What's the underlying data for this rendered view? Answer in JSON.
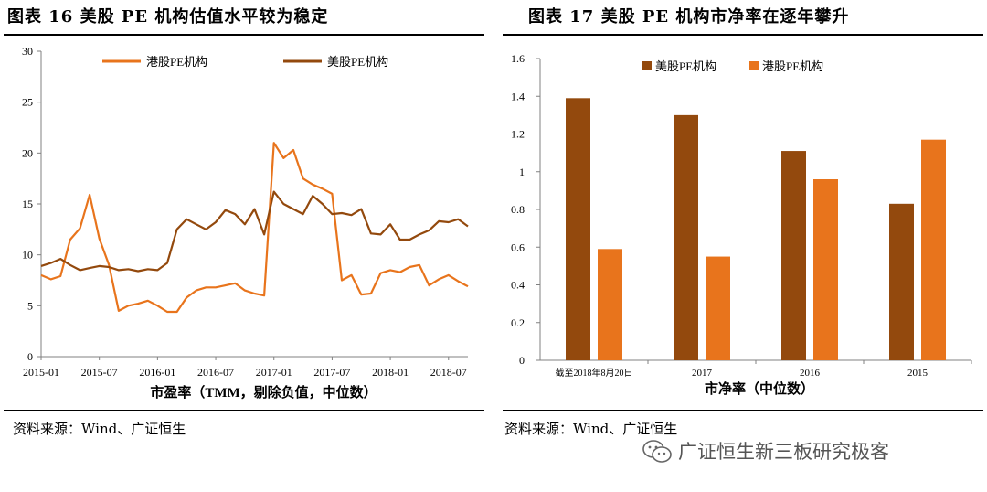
{
  "left": {
    "title": "图表 16 美股 PE 机构估值水平较为稳定",
    "source": "资料来源：Wind、广证恒生"
  },
  "right": {
    "title": "图表 17  美股 PE 机构市净率在逐年攀升",
    "source": "资料来源：Wind、广证恒生"
  },
  "watermark": "广证恒生新三板研究极客",
  "colors": {
    "hk": "#e8741c",
    "us": "#93490d",
    "axis": "#808080"
  },
  "chart_data": [
    {
      "type": "line",
      "xlabel": "市盈率（TMM，剔除负值，中位数）",
      "x_ticks": [
        "2015-01",
        "2015-07",
        "2016-01",
        "2016-07",
        "2017-01",
        "2017-07",
        "2018-01",
        "2018-07"
      ],
      "y_ticks": [
        "0",
        "5",
        "10",
        "15",
        "20",
        "25",
        "30"
      ],
      "ylim": [
        0,
        30
      ],
      "x_range": [
        "2015-01",
        "2018-09"
      ],
      "legend": "top",
      "series": [
        {
          "name": "港股PE机构",
          "color": "#e8741c",
          "points": [
            [
              "2015-01",
              8.0
            ],
            [
              "2015-02",
              7.6
            ],
            [
              "2015-03",
              7.9
            ],
            [
              "2015-04",
              11.5
            ],
            [
              "2015-05",
              12.6
            ],
            [
              "2015-06",
              15.9
            ],
            [
              "2015-07",
              11.6
            ],
            [
              "2015-08",
              9.0
            ],
            [
              "2015-09",
              4.5
            ],
            [
              "2015-10",
              5.0
            ],
            [
              "2015-11",
              5.2
            ],
            [
              "2015-12",
              5.5
            ],
            [
              "2016-01",
              5.0
            ],
            [
              "2016-02",
              4.4
            ],
            [
              "2016-03",
              4.4
            ],
            [
              "2016-04",
              5.8
            ],
            [
              "2016-05",
              6.5
            ],
            [
              "2016-06",
              6.8
            ],
            [
              "2016-07",
              6.8
            ],
            [
              "2016-08",
              7.0
            ],
            [
              "2016-09",
              7.2
            ],
            [
              "2016-10",
              6.5
            ],
            [
              "2016-11",
              6.2
            ],
            [
              "2016-12",
              6.0
            ],
            [
              "2017-01",
              21.0
            ],
            [
              "2017-02",
              19.5
            ],
            [
              "2017-03",
              20.3
            ],
            [
              "2017-04",
              17.5
            ],
            [
              "2017-05",
              16.9
            ],
            [
              "2017-06",
              16.5
            ],
            [
              "2017-07",
              16.0
            ],
            [
              "2017-08",
              7.5
            ],
            [
              "2017-09",
              8.0
            ],
            [
              "2017-10",
              6.1
            ],
            [
              "2017-11",
              6.2
            ],
            [
              "2017-12",
              8.2
            ],
            [
              "2018-01",
              8.5
            ],
            [
              "2018-02",
              8.3
            ],
            [
              "2018-03",
              8.8
            ],
            [
              "2018-04",
              9.0
            ],
            [
              "2018-05",
              7.0
            ],
            [
              "2018-06",
              7.6
            ],
            [
              "2018-07",
              8.0
            ],
            [
              "2018-08",
              7.4
            ],
            [
              "2018-09",
              6.9
            ]
          ]
        },
        {
          "name": "美股PE机构",
          "color": "#93490d",
          "points": [
            [
              "2015-01",
              8.9
            ],
            [
              "2015-02",
              9.2
            ],
            [
              "2015-03",
              9.6
            ],
            [
              "2015-04",
              9.0
            ],
            [
              "2015-05",
              8.5
            ],
            [
              "2015-06",
              8.7
            ],
            [
              "2015-07",
              8.9
            ],
            [
              "2015-08",
              8.8
            ],
            [
              "2015-09",
              8.5
            ],
            [
              "2015-10",
              8.6
            ],
            [
              "2015-11",
              8.4
            ],
            [
              "2015-12",
              8.6
            ],
            [
              "2016-01",
              8.5
            ],
            [
              "2016-02",
              9.2
            ],
            [
              "2016-03",
              12.5
            ],
            [
              "2016-04",
              13.5
            ],
            [
              "2016-05",
              13.0
            ],
            [
              "2016-06",
              12.5
            ],
            [
              "2016-07",
              13.2
            ],
            [
              "2016-08",
              14.4
            ],
            [
              "2016-09",
              14.0
            ],
            [
              "2016-10",
              13.0
            ],
            [
              "2016-11",
              14.5
            ],
            [
              "2016-12",
              12.0
            ],
            [
              "2017-01",
              16.2
            ],
            [
              "2017-02",
              15.0
            ],
            [
              "2017-03",
              14.5
            ],
            [
              "2017-04",
              14.0
            ],
            [
              "2017-05",
              15.8
            ],
            [
              "2017-06",
              15.0
            ],
            [
              "2017-07",
              14.0
            ],
            [
              "2017-08",
              14.1
            ],
            [
              "2017-09",
              13.9
            ],
            [
              "2017-10",
              14.5
            ],
            [
              "2017-11",
              12.1
            ],
            [
              "2017-12",
              12.0
            ],
            [
              "2018-01",
              13.0
            ],
            [
              "2018-02",
              11.5
            ],
            [
              "2018-03",
              11.5
            ],
            [
              "2018-04",
              12.0
            ],
            [
              "2018-05",
              12.4
            ],
            [
              "2018-06",
              13.3
            ],
            [
              "2018-07",
              13.2
            ],
            [
              "2018-08",
              13.5
            ],
            [
              "2018-09",
              12.8
            ]
          ]
        }
      ]
    },
    {
      "type": "bar",
      "xlabel": "市净率（中位数）",
      "categories": [
        "截至2018年8月20日",
        "2017",
        "2016",
        "2015"
      ],
      "y_ticks": [
        "0",
        "0.2",
        "0.4",
        "0.6",
        "0.8",
        "1",
        "1.2",
        "1.4",
        "1.6"
      ],
      "ylim": [
        0,
        1.6
      ],
      "legend": "top",
      "series": [
        {
          "name": "美股PE机构",
          "color": "#93490d",
          "values": [
            1.39,
            1.3,
            1.11,
            0.83
          ]
        },
        {
          "name": "港股PE机构",
          "color": "#e8741c",
          "values": [
            0.59,
            0.55,
            0.96,
            1.17
          ]
        }
      ]
    }
  ]
}
